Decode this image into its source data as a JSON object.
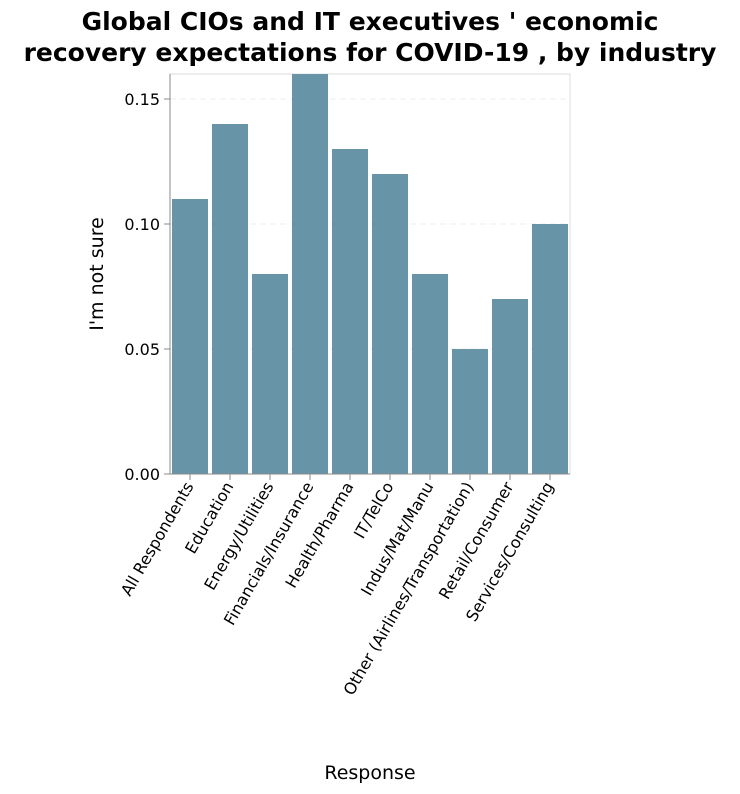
{
  "chart_data": {
    "type": "bar",
    "title_lines": [
      "Global CIOs and IT executives ' economic",
      "recovery expectations for COVID-19 , by industry"
    ],
    "xlabel": "Response",
    "ylabel": "I'm not sure",
    "categories": [
      "All Respondents",
      "Education",
      "Energy/Utilities",
      "Financials/Insurance",
      "Health/Pharma",
      "IT/TelCo",
      "Indus/Mat/Manu",
      "Other (Airlines/Transportation)",
      "Retail/Consumer",
      "Services/Consulting"
    ],
    "values": [
      0.11,
      0.14,
      0.08,
      0.16,
      0.13,
      0.12,
      0.08,
      0.05,
      0.07,
      0.1
    ],
    "yticks": [
      "0.00",
      "0.05",
      "0.10",
      "0.15"
    ],
    "ylim": [
      0,
      0.16
    ],
    "grid": true,
    "bar_color": "#6794a7"
  }
}
